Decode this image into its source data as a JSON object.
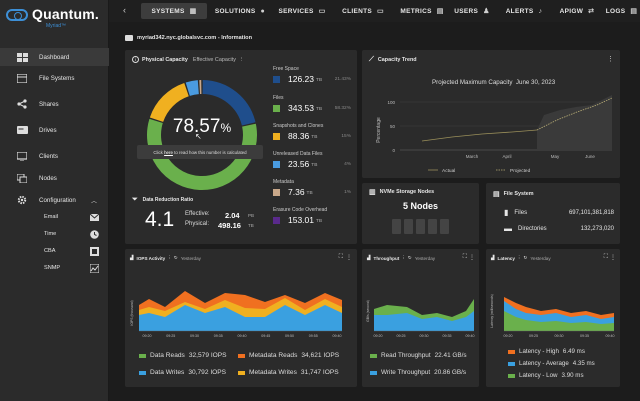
{
  "brand": {
    "name": "Quantum.",
    "product": "Myriad™"
  },
  "sidebar": {
    "items": [
      {
        "label": "Dashboard"
      },
      {
        "label": "File Systems"
      },
      {
        "label": "Shares"
      },
      {
        "label": "Drives"
      },
      {
        "label": "Clients"
      },
      {
        "label": "Nodes"
      },
      {
        "label": "Configuration"
      }
    ],
    "config_items": [
      {
        "label": "Email"
      },
      {
        "label": "Time"
      },
      {
        "label": "CBA"
      },
      {
        "label": "SNMP"
      }
    ]
  },
  "topnav": [
    "SYSTEMS",
    "SOLUTIONS",
    "SERVICES",
    "CLIENTS",
    "METRICS",
    "USERS",
    "ALERTS",
    "APIGW",
    "LOGS"
  ],
  "page": {
    "title": "myriad342.nyc.globalsvc.com - Information"
  },
  "capacity": {
    "title": "Physical Capacity",
    "tab": "Effective Capacity",
    "percent": "78.57",
    "percent_sign": "%",
    "tooltip_pre": "Click",
    "tooltip_link": "here",
    "tooltip_post": "to read how this number is calculated",
    "items": [
      {
        "label": "Free Space",
        "value": "126.23",
        "unit": "TB",
        "pct": "21.43%",
        "color": "#1f4e8c"
      },
      {
        "label": "Files",
        "value": "343.53",
        "unit": "TB",
        "pct": "58.32%",
        "color": "#6ab04c"
      },
      {
        "label": "Snapshots and Clones",
        "value": "88.36",
        "unit": "TB",
        "pct": "15%",
        "color": "#f0b020"
      },
      {
        "label": "Unreleased Data Files",
        "value": "23.56",
        "unit": "TB",
        "pct": "4%",
        "color": "#4a9be0"
      },
      {
        "label": "Metadata",
        "value": "7.36",
        "unit": "TB",
        "pct": "1%",
        "color": "#c9a88a"
      },
      {
        "label": "Erasure Code Overhead",
        "value": "153.01",
        "unit": "TB",
        "pct": "",
        "color": "#5a2a8c"
      }
    ],
    "reduction": {
      "title": "Data Reduction Ratio",
      "ratio": "4.1",
      "effective_label": "Effective:",
      "effective_value": "2.04",
      "effective_unit": "PB",
      "physical_label": "Physical:",
      "physical_value": "498.16",
      "physical_unit": "TB"
    }
  },
  "trend": {
    "title": "Capacity Trend",
    "projected_label": "Projected Maximum Capacity",
    "projected_date": "June 30, 2023",
    "ylabel": "Percentage",
    "yticks": [
      "100",
      "50",
      "0"
    ],
    "xticks": [
      "March",
      "April",
      "May",
      "June"
    ],
    "legend_actual": "Actual",
    "legend_projected": "Projected"
  },
  "nvme": {
    "title": "NVMe Storage Nodes",
    "count": "5 Nodes"
  },
  "filesystem": {
    "title": "File System",
    "files_label": "Files",
    "files_value": "697,101,381,818",
    "dirs_label": "Directories",
    "dirs_value": "132,273,020"
  },
  "iops": {
    "title": "IOPS Activity",
    "range": "Yesterday",
    "ylabel": "IOPS (thousand)",
    "xticks": [
      "09:20",
      "09:25",
      "09:30",
      "09:35",
      "09:40",
      "09:45",
      "09:50",
      "09:55",
      "09:40"
    ],
    "legend": [
      {
        "label": "Data Reads",
        "value": "32,579 IOPS",
        "color": "#6ab04c"
      },
      {
        "label": "Metadata Reads",
        "value": "34,621 IOPS",
        "color": "#f07020"
      },
      {
        "label": "Data Writes",
        "value": "30,792 IOPS",
        "color": "#3aa0e0"
      },
      {
        "label": "Metadata Writes",
        "value": "31,747 IOPS",
        "color": "#f0b020"
      }
    ]
  },
  "throughput": {
    "title": "Throughput",
    "range": "Yesterday",
    "ylabel": "GB/s (second)",
    "xticks": [
      "09:20",
      "09:25",
      "09:30",
      "09:35",
      "09:40"
    ],
    "legend": [
      {
        "label": "Read Throughput",
        "value": "22.41 GB/s",
        "color": "#6ab04c"
      },
      {
        "label": "Write Throughput",
        "value": "20.86 GB/s",
        "color": "#3aa0e0"
      }
    ]
  },
  "latency": {
    "title": "Latency",
    "range": "Yesterday",
    "ylabel": "Latency (milliseconds)",
    "xticks": [
      "09:20",
      "09:25",
      "09:30",
      "09:35",
      "09:40"
    ],
    "legend": [
      {
        "label": "Latency - High",
        "value": "6.49 ms",
        "color": "#f07020"
      },
      {
        "label": "Latency - Average",
        "value": "4.35 ms",
        "color": "#3aa0e0"
      },
      {
        "label": "Latency - Low",
        "value": "3.90 ms",
        "color": "#6ab04c"
      }
    ]
  }
}
